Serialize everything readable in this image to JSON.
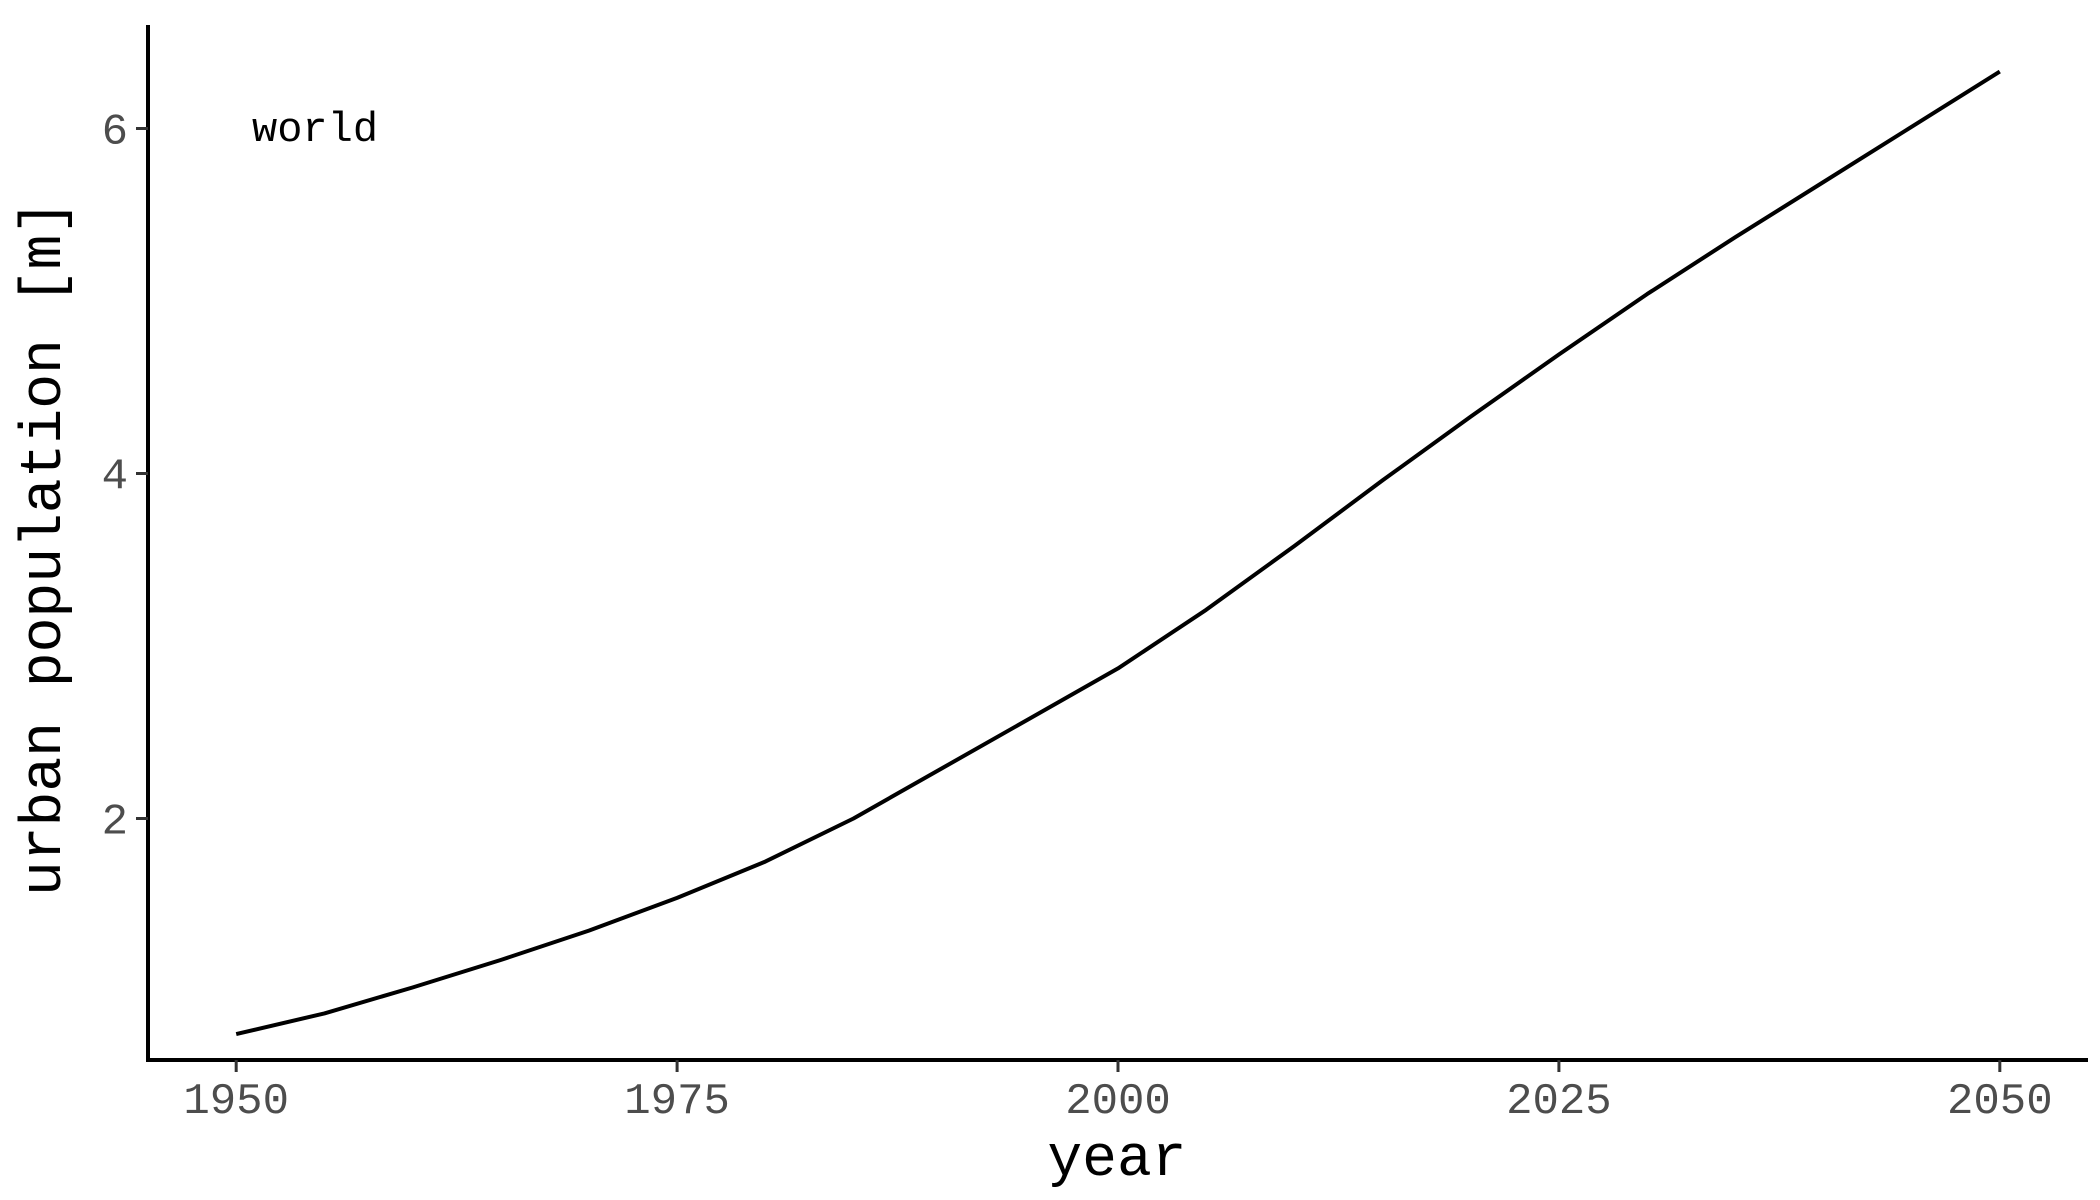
{
  "chart_data": {
    "type": "line",
    "xlabel": "year",
    "ylabel": "urban population [m]",
    "annotation": "world",
    "xlim": [
      1945,
      2055
    ],
    "ylim": [
      0.6,
      6.6
    ],
    "x_ticks": [
      1950,
      1975,
      2000,
      2025,
      2050
    ],
    "y_ticks": [
      2,
      4,
      6
    ],
    "x_tick_labels": [
      "1950",
      "1975",
      "2000",
      "2025",
      "2050"
    ],
    "y_tick_labels": [
      "2",
      "4",
      "6"
    ],
    "grid": false,
    "line_color": "#000000",
    "series": [
      {
        "x": [
          1950,
          1955,
          1960,
          1965,
          1970,
          1975,
          1980,
          1985,
          1990,
          1995,
          2000,
          2005,
          2010,
          2015,
          2020,
          2025,
          2030,
          2035,
          2040,
          2045,
          2050
        ],
        "values": [
          0.75,
          0.87,
          1.02,
          1.18,
          1.35,
          1.54,
          1.75,
          2.0,
          2.29,
          2.58,
          2.87,
          3.21,
          3.58,
          3.96,
          4.33,
          4.69,
          5.04,
          5.37,
          5.69,
          6.01,
          6.33
        ]
      }
    ]
  }
}
